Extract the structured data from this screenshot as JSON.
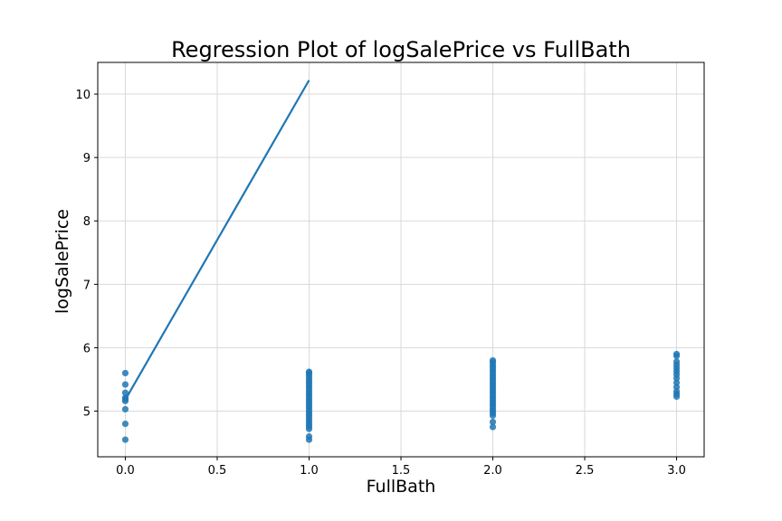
{
  "chart_data": {
    "type": "scatter",
    "title": "Regression Plot of logSalePrice vs FullBath",
    "xlabel": "FullBath",
    "ylabel": "logSalePrice",
    "xlim": [
      -0.15,
      3.15
    ],
    "ylim": [
      4.28,
      10.5
    ],
    "xticks": [
      0.0,
      0.5,
      1.0,
      1.5,
      2.0,
      2.5,
      3.0
    ],
    "xtick_labels": [
      "0.0",
      "0.5",
      "1.0",
      "1.5",
      "2.0",
      "2.5",
      "3.0"
    ],
    "yticks": [
      5,
      6,
      7,
      8,
      9,
      10
    ],
    "ytick_labels": [
      "5",
      "6",
      "7",
      "8",
      "9",
      "10"
    ],
    "grid": true,
    "colors": {
      "points": "#1f77b4",
      "line": "#1f77b4",
      "grid": "#d9d9d9"
    },
    "points": [
      [
        0,
        4.55
      ],
      [
        0,
        4.8
      ],
      [
        0,
        5.03
      ],
      [
        0,
        5.16
      ],
      [
        0,
        5.19
      ],
      [
        0,
        5.21
      ],
      [
        0,
        5.29
      ],
      [
        0,
        5.42
      ],
      [
        0,
        5.6
      ],
      [
        1,
        4.55
      ],
      [
        1,
        4.6
      ],
      [
        1,
        4.72
      ],
      [
        1,
        4.76
      ],
      [
        1,
        4.8
      ],
      [
        1,
        4.84
      ],
      [
        1,
        4.88
      ],
      [
        1,
        4.92
      ],
      [
        1,
        4.96
      ],
      [
        1,
        5.0
      ],
      [
        1,
        5.04
      ],
      [
        1,
        5.08
      ],
      [
        1,
        5.12
      ],
      [
        1,
        5.16
      ],
      [
        1,
        5.2
      ],
      [
        1,
        5.24
      ],
      [
        1,
        5.28
      ],
      [
        1,
        5.32
      ],
      [
        1,
        5.36
      ],
      [
        1,
        5.4
      ],
      [
        1,
        5.44
      ],
      [
        1,
        5.48
      ],
      [
        1,
        5.52
      ],
      [
        1,
        5.56
      ],
      [
        1,
        5.6
      ],
      [
        1,
        5.62
      ],
      [
        2,
        4.75
      ],
      [
        2,
        4.83
      ],
      [
        2,
        4.93
      ],
      [
        2,
        4.97
      ],
      [
        2,
        5.01
      ],
      [
        2,
        5.05
      ],
      [
        2,
        5.09
      ],
      [
        2,
        5.13
      ],
      [
        2,
        5.17
      ],
      [
        2,
        5.21
      ],
      [
        2,
        5.25
      ],
      [
        2,
        5.29
      ],
      [
        2,
        5.33
      ],
      [
        2,
        5.37
      ],
      [
        2,
        5.41
      ],
      [
        2,
        5.45
      ],
      [
        2,
        5.49
      ],
      [
        2,
        5.53
      ],
      [
        2,
        5.57
      ],
      [
        2,
        5.61
      ],
      [
        2,
        5.65
      ],
      [
        2,
        5.69
      ],
      [
        2,
        5.73
      ],
      [
        2,
        5.77
      ],
      [
        2,
        5.8
      ],
      [
        3,
        5.23
      ],
      [
        3,
        5.27
      ],
      [
        3,
        5.31
      ],
      [
        3,
        5.38
      ],
      [
        3,
        5.45
      ],
      [
        3,
        5.52
      ],
      [
        3,
        5.58
      ],
      [
        3,
        5.63
      ],
      [
        3,
        5.68
      ],
      [
        3,
        5.73
      ],
      [
        3,
        5.78
      ],
      [
        3,
        5.87
      ],
      [
        3,
        5.9
      ]
    ],
    "regression_line": [
      [
        0,
        5.18
      ],
      [
        1,
        10.22
      ]
    ]
  }
}
